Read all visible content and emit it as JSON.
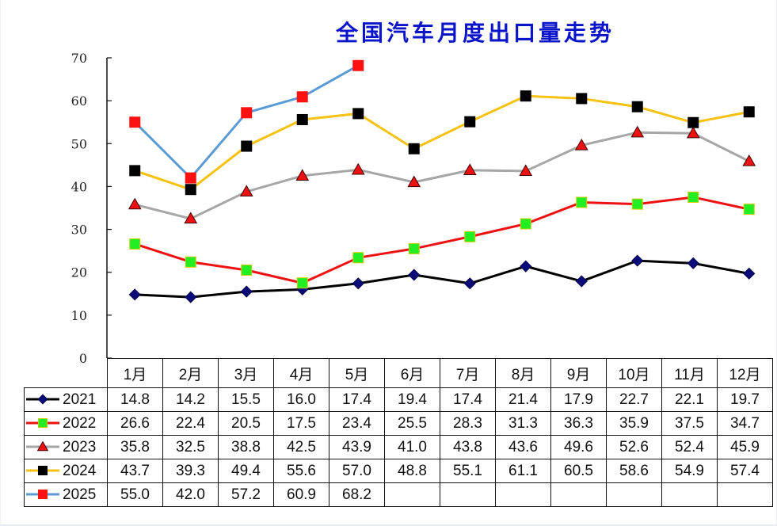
{
  "title": "全国汽车月度出口量走势",
  "chart_data": {
    "type": "line",
    "title": "全国汽车月度出口量走势",
    "xlabel": "",
    "ylabel": "",
    "ylim": [
      0,
      70
    ],
    "yticks": [
      0,
      10,
      20,
      30,
      40,
      50,
      60,
      70
    ],
    "grid": false,
    "legend_position": "data-table-left",
    "categories": [
      "1月",
      "2月",
      "3月",
      "4月",
      "5月",
      "6月",
      "7月",
      "8月",
      "9月",
      "10月",
      "11月",
      "12月"
    ],
    "series": [
      {
        "name": "2021",
        "line_color": "#000000",
        "marker": "diamond",
        "marker_color": "#0a0a78",
        "values": [
          14.8,
          14.2,
          15.5,
          16.0,
          17.4,
          19.4,
          17.4,
          21.4,
          17.9,
          22.7,
          22.1,
          19.7
        ]
      },
      {
        "name": "2022",
        "line_color": "#ee1111",
        "marker": "square",
        "marker_color": "#22ee22",
        "values": [
          26.6,
          22.4,
          20.5,
          17.5,
          23.4,
          25.5,
          28.3,
          31.3,
          36.3,
          35.9,
          37.5,
          34.7
        ]
      },
      {
        "name": "2023",
        "line_color": "#a6a6a6",
        "marker": "triangle",
        "marker_color": "#ee1111",
        "values": [
          35.8,
          32.5,
          38.8,
          42.5,
          43.9,
          41.0,
          43.8,
          43.6,
          49.6,
          52.6,
          52.4,
          45.9
        ]
      },
      {
        "name": "2024",
        "line_color": "#f5c211",
        "marker": "square",
        "marker_color": "#000000",
        "values": [
          43.7,
          39.3,
          49.4,
          55.6,
          57.0,
          48.8,
          55.1,
          61.1,
          60.5,
          58.6,
          54.9,
          57.4
        ]
      },
      {
        "name": "2025",
        "line_color": "#5b9bd5",
        "marker": "square",
        "marker_color": "#ff1111",
        "values": [
          55.0,
          42.0,
          57.2,
          60.9,
          68.2,
          null,
          null,
          null,
          null,
          null,
          null,
          null
        ]
      }
    ]
  },
  "table": {
    "headers": [
      "1月",
      "2月",
      "3月",
      "4月",
      "5月",
      "6月",
      "7月",
      "8月",
      "9月",
      "10月",
      "11月",
      "12月"
    ],
    "rows": [
      {
        "label": "2021",
        "cells": [
          "14.8",
          "14.2",
          "15.5",
          "16.0",
          "17.4",
          "19.4",
          "17.4",
          "21.4",
          "17.9",
          "22.7",
          "22.1",
          "19.7"
        ]
      },
      {
        "label": "2022",
        "cells": [
          "26.6",
          "22.4",
          "20.5",
          "17.5",
          "23.4",
          "25.5",
          "28.3",
          "31.3",
          "36.3",
          "35.9",
          "37.5",
          "34.7"
        ]
      },
      {
        "label": "2023",
        "cells": [
          "35.8",
          "32.5",
          "38.8",
          "42.5",
          "43.9",
          "41.0",
          "43.8",
          "43.6",
          "49.6",
          "52.6",
          "52.4",
          "45.9"
        ]
      },
      {
        "label": "2024",
        "cells": [
          "43.7",
          "39.3",
          "49.4",
          "55.6",
          "57.0",
          "48.8",
          "55.1",
          "61.1",
          "60.5",
          "58.6",
          "54.9",
          "57.4"
        ]
      },
      {
        "label": "2025",
        "cells": [
          "55.0",
          "42.0",
          "57.2",
          "60.9",
          "68.2",
          "",
          "",
          "",
          "",
          "",
          "",
          ""
        ]
      }
    ]
  }
}
